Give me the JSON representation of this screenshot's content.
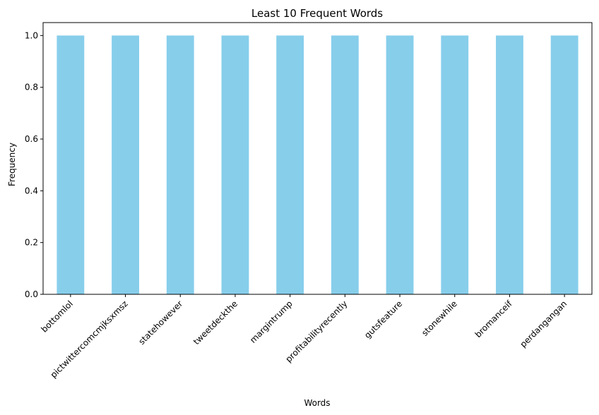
{
  "chart_data": {
    "type": "bar",
    "title": "Least 10 Frequent Words",
    "xlabel": "Words",
    "ylabel": "Frequency",
    "categories": [
      "bottomlol",
      "pictwittercomcmjksxmsz",
      "statehowever",
      "tweetdeckthe",
      "margintrump",
      "profitabilityrecently",
      "gutsfeature",
      "stonewhile",
      "bromanceif",
      "perdangangan"
    ],
    "values": [
      1,
      1,
      1,
      1,
      1,
      1,
      1,
      1,
      1,
      1
    ],
    "ylim": [
      0,
      1.05
    ],
    "yticks": [
      0.0,
      0.2,
      0.4,
      0.6,
      0.8,
      1.0
    ],
    "ytick_labels": [
      "0.0",
      "0.2",
      "0.4",
      "0.6",
      "0.8",
      "1.0"
    ],
    "bar_color": "#87ceeb",
    "grid": false,
    "legend": "none"
  }
}
